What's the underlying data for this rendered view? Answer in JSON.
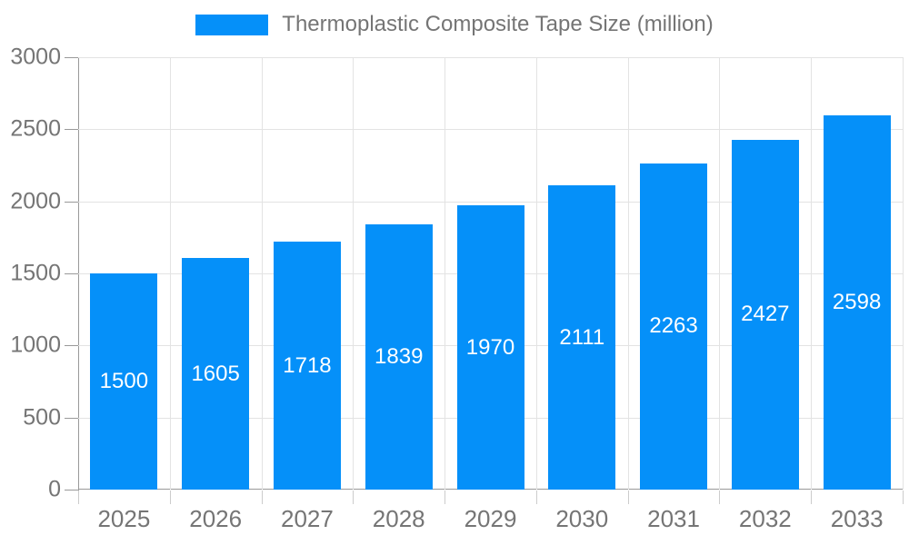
{
  "legend": {
    "label": "Thermoplastic Composite Tape Size (million)",
    "swatch_color": "#0590f9"
  },
  "chart_data": {
    "type": "bar",
    "title": "Thermoplastic Composite Tape Size (million)",
    "series": [
      {
        "name": "Thermoplastic Composite Tape Size (million)",
        "values": [
          1500,
          1605,
          1718,
          1839,
          1970,
          2111,
          2263,
          2427,
          2598
        ]
      }
    ],
    "categories": [
      "2025",
      "2026",
      "2027",
      "2028",
      "2029",
      "2030",
      "2031",
      "2032",
      "2033"
    ],
    "values": [
      1500,
      1605,
      1718,
      1839,
      1970,
      2111,
      2263,
      2427,
      2598
    ],
    "value_labels": [
      "1500",
      "1605",
      "1718",
      "1839",
      "1970",
      "2111",
      "2263",
      "2427",
      "2598"
    ],
    "ylabel": "",
    "xlabel": "",
    "ylim": [
      0,
      3000
    ],
    "yticks": [
      0,
      500,
      1000,
      1500,
      2000,
      2500,
      3000
    ],
    "grid": true,
    "legend_position": "top",
    "colors": {
      "bar": "#0590f9",
      "value_label": "#ffffff",
      "axis_label": "#757575",
      "grid_line": "#e3e3e3",
      "axis_line": "#999999"
    }
  }
}
